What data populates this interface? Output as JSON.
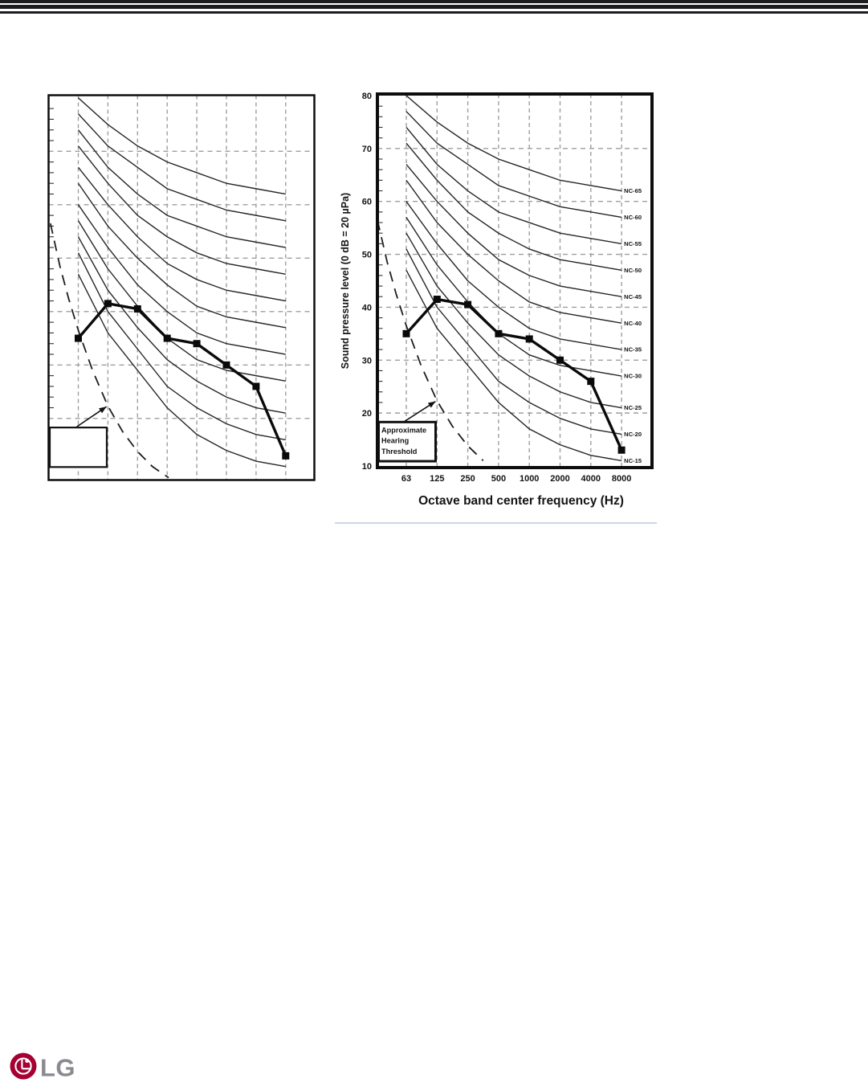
{
  "page": {
    "background": "#ffffff"
  },
  "top_bar": {
    "stripe_color": "#1d1d1f"
  },
  "divider": {
    "color": "#ccd7e2"
  },
  "chart_data": {
    "type": "line",
    "xlabel": "Octave band center frequency (Hz)",
    "ylabel": "Sound pressure level (0 dB = 20 µPa)",
    "x_categories_hz": [
      63,
      125,
      250,
      500,
      1000,
      2000,
      4000,
      8000
    ],
    "x_tick_labels": [
      "63",
      "125",
      "250",
      "500",
      "1000",
      "2000",
      "4000",
      "8000"
    ],
    "y_tick_labels": [
      "80",
      "70",
      "60",
      "50",
      "40",
      "30",
      "20",
      "10"
    ],
    "ylim": [
      10,
      80
    ],
    "grid": "dashed",
    "legend_position": "curve-end-labels-right",
    "measured_series": {
      "values": [
        35,
        41.5,
        40.5,
        35,
        34,
        30,
        26,
        13
      ],
      "style": "thick-black-line-square-markers"
    },
    "nc_curves": [
      {
        "label": "NC-65",
        "values": [
          80,
          75,
          71,
          68,
          66,
          64,
          63,
          62
        ]
      },
      {
        "label": "NC-60",
        "values": [
          77,
          71,
          67,
          63,
          61,
          59,
          58,
          57
        ]
      },
      {
        "label": "NC-55",
        "values": [
          74,
          67,
          62,
          58,
          56,
          54,
          53,
          52
        ]
      },
      {
        "label": "NC-50",
        "values": [
          71,
          64,
          58,
          54,
          51,
          49,
          48,
          47
        ]
      },
      {
        "label": "NC-45",
        "values": [
          67,
          60,
          54,
          49,
          46,
          44,
          43,
          42
        ]
      },
      {
        "label": "NC-40",
        "values": [
          64,
          56,
          50,
          45,
          41,
          39,
          38,
          37
        ]
      },
      {
        "label": "NC-35",
        "values": [
          60,
          52,
          45,
          40,
          36,
          34,
          33,
          32
        ]
      },
      {
        "label": "NC-30",
        "values": [
          57,
          48,
          41,
          35,
          31,
          29,
          28,
          27
        ]
      },
      {
        "label": "NC-25",
        "values": [
          54,
          44,
          37,
          31,
          27,
          24,
          22,
          21
        ]
      },
      {
        "label": "NC-20",
        "values": [
          51,
          40,
          33,
          26,
          22,
          19,
          17,
          16
        ]
      },
      {
        "label": "NC-15",
        "values": [
          47,
          36,
          29,
          22,
          17,
          14,
          12,
          11
        ]
      }
    ],
    "hearing_threshold": {
      "style": "long-dashed",
      "points_octave_db": [
        [
          -0.94,
          56.5
        ],
        [
          -0.62,
          48.5
        ],
        [
          -0.33,
          42.5
        ],
        [
          0,
          36.5
        ],
        [
          0.48,
          29
        ],
        [
          1,
          22.3
        ],
        [
          1.5,
          17.5
        ],
        [
          2,
          13.8
        ],
        [
          2.5,
          11
        ],
        [
          3.05,
          8.9
        ]
      ]
    },
    "annotation": {
      "lines": [
        "Approximate",
        "Hearing",
        "Threshold"
      ]
    }
  },
  "logo": {
    "text": "LG",
    "symbol_color": "#a50034",
    "text_color": "#8a8b90"
  }
}
